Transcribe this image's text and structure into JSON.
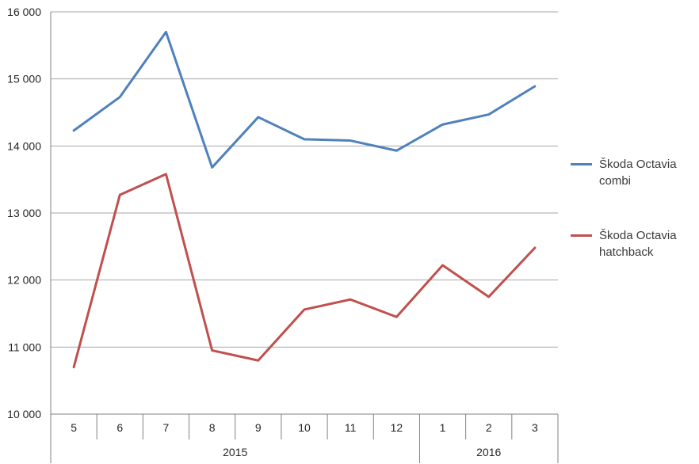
{
  "chart_data": {
    "type": "line",
    "title": "",
    "xlabel": "",
    "ylabel": "",
    "grid": "horizontal",
    "legend_position": "right",
    "categories": [
      "5",
      "6",
      "7",
      "8",
      "9",
      "10",
      "11",
      "12",
      "1",
      "2",
      "3"
    ],
    "year_groups": [
      {
        "label": "2015",
        "span": 8
      },
      {
        "label": "2016",
        "span": 3
      }
    ],
    "ylim": [
      10000,
      16000
    ],
    "ytick_step": 1000,
    "ytick_labels": [
      "10 000",
      "11 000",
      "12 000",
      "13 000",
      "14 000",
      "15 000",
      "16 000"
    ],
    "series": [
      {
        "name": "Škoda Octavia combi",
        "color": "#4F81BD",
        "values": [
          14230,
          14730,
          15700,
          13680,
          14430,
          14100,
          14080,
          13930,
          14320,
          14470,
          14890
        ]
      },
      {
        "name": "Škoda Octavia hatchback",
        "color": "#C0504D",
        "values": [
          10700,
          13270,
          13580,
          10950,
          10800,
          11560,
          11710,
          11450,
          12220,
          11750,
          12480
        ]
      }
    ],
    "axis_color": "#808080",
    "gridline_color": "#a6a6a6"
  }
}
